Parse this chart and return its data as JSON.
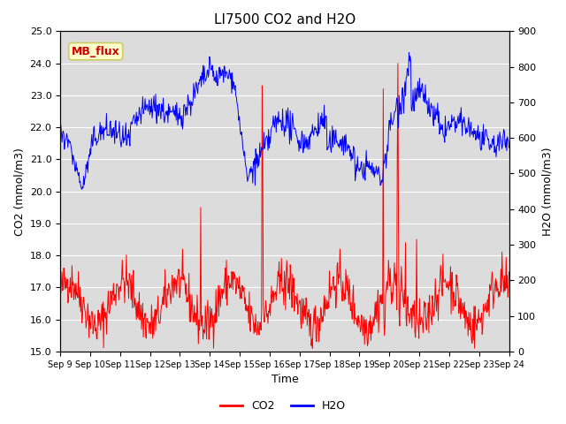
{
  "title": "LI7500 CO2 and H2O",
  "xlabel": "Time",
  "ylabel_left": "CO2 (mmol/m3)",
  "ylabel_right": "H2O (mmol/m3)",
  "ylim_left": [
    15.0,
    25.0
  ],
  "ylim_right": [
    0,
    900
  ],
  "yticks_left": [
    15.0,
    16.0,
    17.0,
    18.0,
    19.0,
    20.0,
    21.0,
    22.0,
    23.0,
    24.0,
    25.0
  ],
  "yticks_right": [
    0,
    100,
    200,
    300,
    400,
    500,
    600,
    700,
    800,
    900
  ],
  "xtick_labels": [
    "Sep 9",
    "Sep 10",
    "Sep 11",
    "Sep 12",
    "Sep 13",
    "Sep 14",
    "Sep 15",
    "Sep 16",
    "Sep 17",
    "Sep 18",
    "Sep 19",
    "Sep 20",
    "Sep 21",
    "Sep 22",
    "Sep 23",
    "Sep 24"
  ],
  "co2_color": "#ff0000",
  "h2o_color": "#0000ff",
  "bg_color": "#dcdcdc",
  "annotation_text": "MB_flux",
  "annotation_bg": "#ffffcc",
  "annotation_border": "#cccc66",
  "grid_color": "#ffffff",
  "title_fontsize": 11,
  "axis_fontsize": 9,
  "tick_fontsize": 8,
  "legend_fontsize": 9
}
